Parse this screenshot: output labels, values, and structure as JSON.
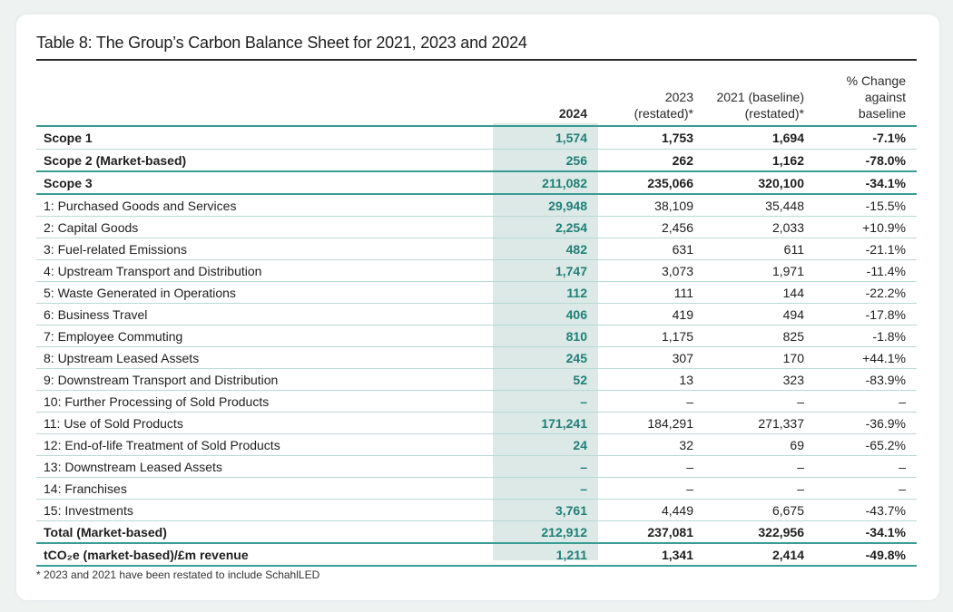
{
  "title": "Table 8: The Group’s Carbon Balance Sheet for 2021, 2023 and 2024",
  "headers": {
    "year_2024": "2024",
    "year_2023_line1": "2023",
    "year_2023_line2": "(restated)*",
    "year_2021_line1": "2021 (baseline)",
    "year_2021_line2": "(restated)*",
    "pct_line1": "% Change",
    "pct_line2": "against",
    "pct_line3": "baseline"
  },
  "rows": [
    {
      "label": "Scope 1",
      "v2024": "1,574",
      "v2023": "1,753",
      "v2021": "1,694",
      "pct": "-7.1%",
      "bold": true
    },
    {
      "label": "Scope 2 (Market-based)",
      "v2024": "256",
      "v2023": "262",
      "v2021": "1,162",
      "pct": "-78.0%",
      "bold": true
    },
    {
      "label": "Scope 3",
      "v2024": "211,082",
      "v2023": "235,066",
      "v2021": "320,100",
      "pct": "-34.1%",
      "bold": true
    },
    {
      "label": "1: Purchased Goods and Services",
      "v2024": "29,948",
      "v2023": "38,109",
      "v2021": "35,448",
      "pct": "-15.5%"
    },
    {
      "label": "2: Capital Goods",
      "v2024": "2,254",
      "v2023": "2,456",
      "v2021": "2,033",
      "pct": "+10.9%"
    },
    {
      "label": "3: Fuel-related Emissions",
      "v2024": "482",
      "v2023": "631",
      "v2021": "611",
      "pct": "-21.1%"
    },
    {
      "label": "4: Upstream Transport and Distribution",
      "v2024": "1,747",
      "v2023": "3,073",
      "v2021": "1,971",
      "pct": "-11.4%"
    },
    {
      "label": "5: Waste Generated in Operations",
      "v2024": "112",
      "v2023": "111",
      "v2021": "144",
      "pct": "-22.2%"
    },
    {
      "label": "6: Business Travel",
      "v2024": "406",
      "v2023": "419",
      "v2021": "494",
      "pct": "-17.8%"
    },
    {
      "label": "7: Employee Commuting",
      "v2024": "810",
      "v2023": "1,175",
      "v2021": "825",
      "pct": "-1.8%"
    },
    {
      "label": "8: Upstream Leased Assets",
      "v2024": "245",
      "v2023": "307",
      "v2021": "170",
      "pct": "+44.1%"
    },
    {
      "label": "9: Downstream Transport and Distribution",
      "v2024": "52",
      "v2023": "13",
      "v2021": "323",
      "pct": "-83.9%"
    },
    {
      "label": "10: Further Processing of Sold Products",
      "v2024": "–",
      "v2023": "–",
      "v2021": "–",
      "pct": "–"
    },
    {
      "label": "11: Use of Sold Products",
      "v2024": "171,241",
      "v2023": "184,291",
      "v2021": "271,337",
      "pct": "-36.9%"
    },
    {
      "label": "12: End-of-life Treatment of Sold Products",
      "v2024": "24",
      "v2023": "32",
      "v2021": "69",
      "pct": "-65.2%"
    },
    {
      "label": "13: Downstream Leased Assets",
      "v2024": "–",
      "v2023": "–",
      "v2021": "–",
      "pct": "–"
    },
    {
      "label": "14: Franchises",
      "v2024": "–",
      "v2023": "–",
      "v2021": "–",
      "pct": "–"
    },
    {
      "label": "15: Investments",
      "v2024": "3,761",
      "v2023": "4,449",
      "v2021": "6,675",
      "pct": "-43.7%"
    },
    {
      "label": "Total (Market-based)",
      "v2024": "212,912",
      "v2023": "237,081",
      "v2021": "322,956",
      "pct": "-34.1%",
      "bold": true
    },
    {
      "label": "tCO₂e (market-based)/£m revenue",
      "v2024": "1,211",
      "v2023": "1,341",
      "v2021": "2,414",
      "pct": "-49.8%",
      "bold": true
    }
  ],
  "footnote": "* 2023 and 2021 have been restated to include SchahlLED",
  "colors": {
    "accent": "#3a9c93",
    "highlight_column": "#dce9e7",
    "year_text": "#1f7f76"
  }
}
